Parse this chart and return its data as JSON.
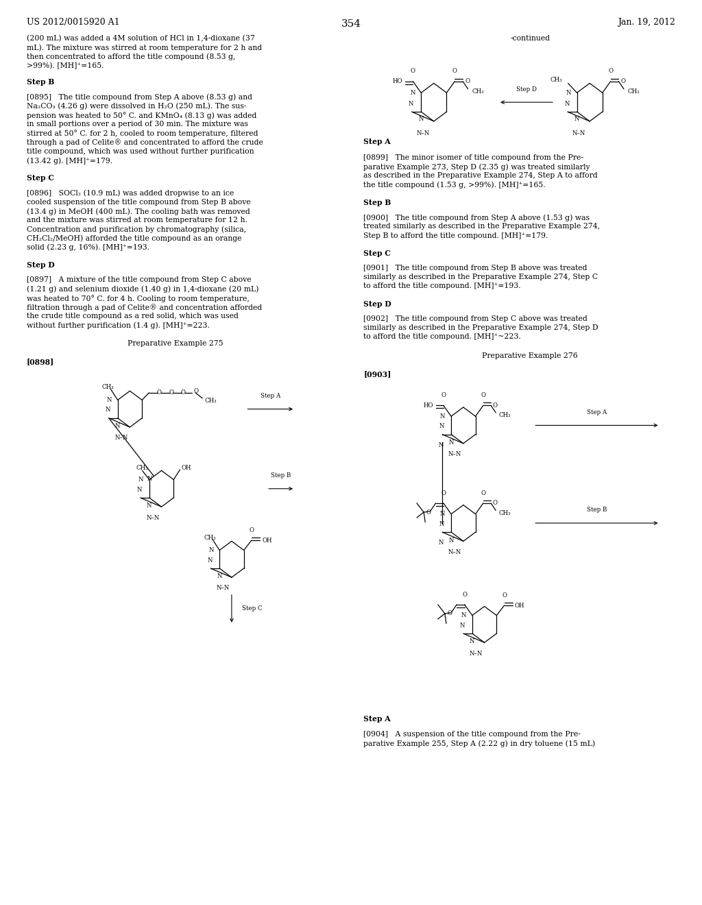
{
  "page_num": "354",
  "patent_id": "US 2012/0015920 A1",
  "patent_date": "Jan. 19, 2012",
  "bg": "#ffffff",
  "left_texts": [
    [
      0.9615,
      "(200 mL) was added a 4M solution of HCl in 1,4-dioxane (37",
      false
    ],
    [
      0.9515,
      "mL). The mixture was stirred at room temperature for 2 h and",
      false
    ],
    [
      0.9415,
      "then concentrated to afford the title compound (8.53 g,",
      false
    ],
    [
      0.9315,
      ">99%). [MH]⁺=165.",
      false
    ],
    [
      0.9135,
      "Step B",
      true
    ],
    [
      0.8965,
      "[0895]   The title compound from Step A above (8.53 g) and",
      false
    ],
    [
      0.8865,
      "Na₂CO₃ (4.26 g) were dissolved in H₂O (250 mL). The sus-",
      false
    ],
    [
      0.8765,
      "pension was heated to 50° C. and KMnO₄ (8.13 g) was added",
      false
    ],
    [
      0.8665,
      "in small portions over a period of 30 min. The mixture was",
      false
    ],
    [
      0.8565,
      "stirred at 50° C. for 2 h, cooled to room temperature, filtered",
      false
    ],
    [
      0.8465,
      "through a pad of Celite® and concentrated to afford the crude",
      false
    ],
    [
      0.8365,
      "title compound, which was used without further purification",
      false
    ],
    [
      0.8265,
      "(13.42 g). [MH]⁺=179.",
      false
    ],
    [
      0.8075,
      "Step C",
      true
    ],
    [
      0.7905,
      "[0896]   SOCl₂ (10.9 mL) was added dropwise to an ice",
      false
    ],
    [
      0.7805,
      "cooled suspension of the title compound from Step B above",
      false
    ],
    [
      0.7705,
      "(13.4 g) in MeOH (400 mL). The cooling bath was removed",
      false
    ],
    [
      0.7605,
      "and the mixture was stirred at room temperature for 12 h.",
      false
    ],
    [
      0.7505,
      "Concentration and purification by chromatography (silica,",
      false
    ],
    [
      0.7405,
      "CH₂Cl₂/MeOH) afforded the title compound as an orange",
      false
    ],
    [
      0.7305,
      "solid (2.23 g, 16%). [MH]⁺=193.",
      false
    ],
    [
      0.7115,
      "Step D",
      true
    ],
    [
      0.6945,
      "[0897]   A mixture of the title compound from Step C above",
      false
    ],
    [
      0.6845,
      "(1.21 g) and selenium dioxide (1.40 g) in 1,4-dioxane (20 mL)",
      false
    ],
    [
      0.6745,
      "was heated to 70° C. for 4 h. Cooling to room temperature,",
      false
    ],
    [
      0.6645,
      "filtration through a pad of Celite® and concentration afforded",
      false
    ],
    [
      0.6545,
      "the crude title compound as a red solid, which was used",
      false
    ],
    [
      0.6445,
      "without further purification (1.4 g). [MH]⁺=223.",
      false
    ],
    [
      0.6245,
      "Preparative Example 275",
      false
    ],
    [
      0.6045,
      "[0898]",
      true
    ]
  ],
  "right_texts": [
    [
      0.9615,
      "-continued",
      false,
      true
    ],
    [
      0.8475,
      "Step A",
      true,
      false
    ],
    [
      0.8295,
      "[0899]   The minor isomer of title compound from the Pre-",
      false,
      false
    ],
    [
      0.8195,
      "parative Example 273, Step D (2.35 g) was treated similarly",
      false,
      false
    ],
    [
      0.8095,
      "as described in the Preparative Example 274, Step A to afford",
      false,
      false
    ],
    [
      0.7995,
      "the title compound (1.53 g, >99%). [MH]⁺=165.",
      false,
      false
    ],
    [
      0.7805,
      "Step B",
      true,
      false
    ],
    [
      0.7635,
      "[0900]   The title compound from Step A above (1.53 g) was",
      false,
      false
    ],
    [
      0.7535,
      "treated similarly as described in the Preparative Example 274,",
      false,
      false
    ],
    [
      0.7435,
      "Step B to afford the title compound. [MH]⁺=179.",
      false,
      false
    ],
    [
      0.7245,
      "Step C",
      true,
      false
    ],
    [
      0.7075,
      "[0901]   The title compound from Step B above was treated",
      false,
      false
    ],
    [
      0.6975,
      "similarly as described in the Preparative Example 274, Step C",
      false,
      false
    ],
    [
      0.6875,
      "to afford the title compound. [MH]⁺=193.",
      false,
      false
    ],
    [
      0.6685,
      "Step D",
      true,
      false
    ],
    [
      0.6515,
      "[0902]   The title compound from Step C above was treated",
      false,
      false
    ],
    [
      0.6415,
      "similarly as described in the Preparative Example 274, Step D",
      false,
      false
    ],
    [
      0.6315,
      "to afford the title compound. [MH]⁺~223.",
      false,
      false
    ],
    [
      0.6105,
      "Preparative Example 276",
      false,
      true
    ],
    [
      0.5905,
      "[0903]",
      true,
      false
    ],
    [
      0.2095,
      "Step A",
      true,
      false
    ],
    [
      0.1925,
      "[0904]   A suspension of the title compound from the Pre-",
      false,
      false
    ],
    [
      0.1825,
      "parative Example 255, Step A (2.22 g) in dry toluene (15 mL)",
      false,
      false
    ]
  ]
}
